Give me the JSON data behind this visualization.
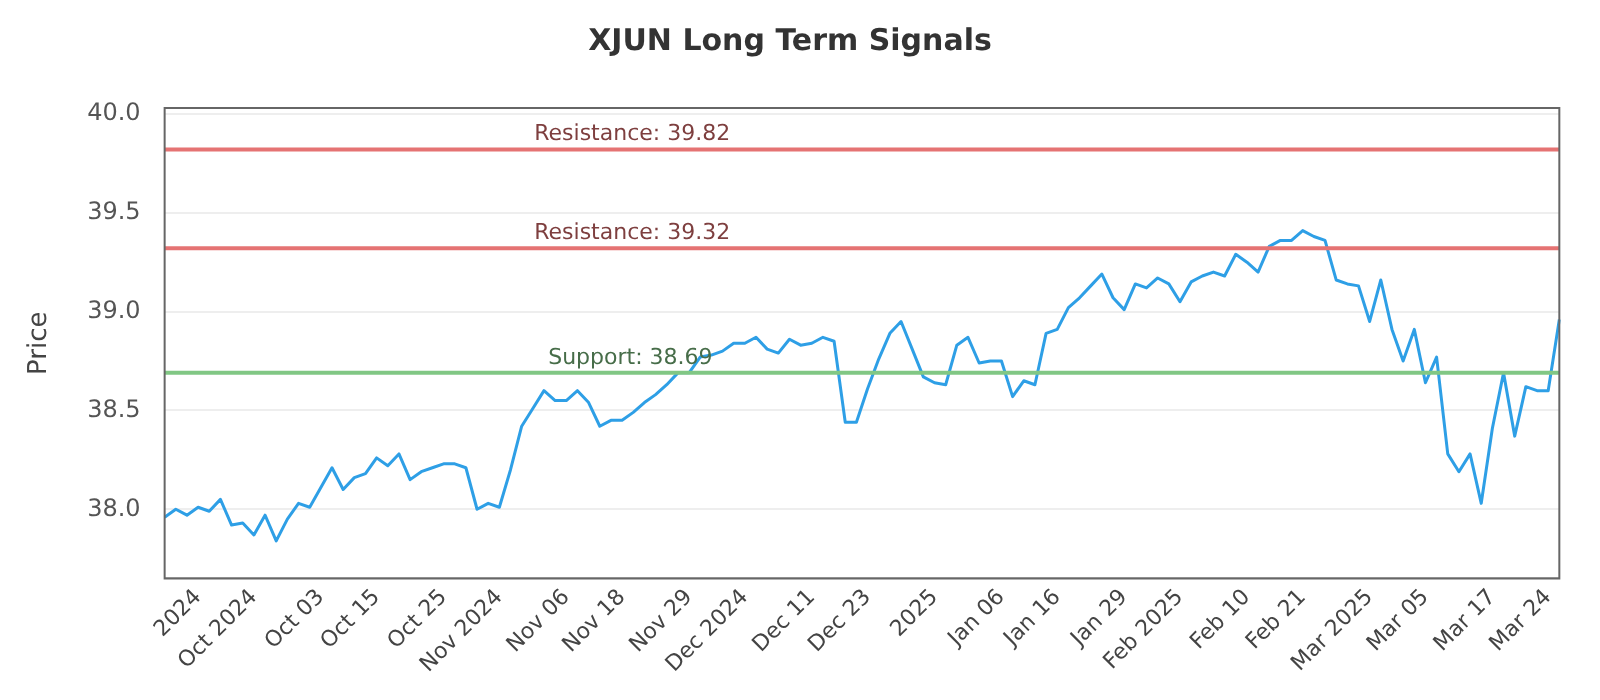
{
  "chart_data": {
    "type": "line",
    "title": "XJUN Long Term Signals",
    "ylabel": "Price",
    "categories": [
      null,
      null,
      null,
      "2024",
      null,
      null,
      null,
      null,
      "Oct 2024",
      null,
      null,
      null,
      null,
      null,
      "Oct 03",
      null,
      null,
      null,
      null,
      "Oct 15",
      null,
      null,
      null,
      null,
      null,
      "Oct 25",
      null,
      null,
      null,
      null,
      "Nov 2024",
      null,
      null,
      null,
      null,
      null,
      "Nov 06",
      null,
      null,
      null,
      null,
      "Nov 18",
      null,
      null,
      null,
      null,
      null,
      "Nov 29",
      null,
      null,
      null,
      null,
      "Dec 2024",
      null,
      null,
      null,
      null,
      null,
      "Dec 11",
      null,
      null,
      null,
      null,
      "Dec 23",
      null,
      null,
      null,
      null,
      null,
      "2025",
      null,
      null,
      null,
      null,
      null,
      "Jan 06",
      null,
      null,
      null,
      null,
      "Jan 16",
      null,
      null,
      null,
      null,
      null,
      "Jan 29",
      null,
      null,
      null,
      null,
      "Feb 2025",
      null,
      null,
      null,
      null,
      null,
      "Feb 10",
      null,
      null,
      null,
      null,
      "Feb 21",
      null,
      null,
      null,
      null,
      null,
      "Mar 2025",
      null,
      null,
      null,
      null,
      "Mar 05",
      null,
      null,
      null,
      null,
      null,
      "Mar 17",
      null,
      null,
      null,
      null,
      "Mar 24",
      null
    ],
    "series": [
      {
        "color": "#2e9fe6",
        "values": [
          37.96,
          38.0,
          37.97,
          38.01,
          37.99,
          38.05,
          37.92,
          37.93,
          37.87,
          37.97,
          37.84,
          37.95,
          38.03,
          38.01,
          38.11,
          38.21,
          38.1,
          38.16,
          38.18,
          38.26,
          38.22,
          38.28,
          38.15,
          38.19,
          38.21,
          38.23,
          38.23,
          38.21,
          38.0,
          38.03,
          38.01,
          38.2,
          38.42,
          38.51,
          38.6,
          38.55,
          38.55,
          38.6,
          38.54,
          38.42,
          38.45,
          38.45,
          38.49,
          38.54,
          38.58,
          38.63,
          38.69,
          38.69,
          38.77,
          38.78,
          38.8,
          38.84,
          38.84,
          38.87,
          38.81,
          38.79,
          38.86,
          38.83,
          38.84,
          38.87,
          38.85,
          38.44,
          38.44,
          38.61,
          38.76,
          38.89,
          38.95,
          38.81,
          38.67,
          38.64,
          38.63,
          38.83,
          38.87,
          38.74,
          38.75,
          38.75,
          38.57,
          38.65,
          38.63,
          38.89,
          38.91,
          39.02,
          39.07,
          39.13,
          39.19,
          39.07,
          39.01,
          39.14,
          39.12,
          39.17,
          39.14,
          39.05,
          39.15,
          39.18,
          39.2,
          39.18,
          39.29,
          39.25,
          39.2,
          39.33,
          39.36,
          39.36,
          39.41,
          39.38,
          39.36,
          39.16,
          39.14,
          39.13,
          38.95,
          39.16,
          38.91,
          38.75,
          38.91,
          38.64,
          38.77,
          38.28,
          38.19,
          38.28,
          38.03,
          38.41,
          38.69,
          38.37,
          38.62,
          38.6,
          38.6,
          38.96
        ]
      }
    ],
    "ylim": [
      37.65,
      40.03
    ],
    "yticks": [
      {
        "value": 38,
        "label": "38.0"
      },
      {
        "value": 38.5,
        "label": "38.5"
      },
      {
        "value": 39,
        "label": "39.0"
      },
      {
        "value": 39.5,
        "label": "39.5"
      },
      {
        "value": 40,
        "label": "40.0"
      }
    ],
    "grid": "y",
    "legend": false,
    "marker": "none",
    "line_style": "solid",
    "ref_lines": [
      {
        "axis": "y",
        "value": 39.82,
        "label": "Resistance: 39.82",
        "color": "#e57373"
      },
      {
        "axis": "y",
        "value": 39.32,
        "label": "Resistance: 39.32",
        "color": "#e57373"
      },
      {
        "axis": "y",
        "value": 38.69,
        "label": "Support: 38.69",
        "color": "#81c784"
      }
    ]
  }
}
